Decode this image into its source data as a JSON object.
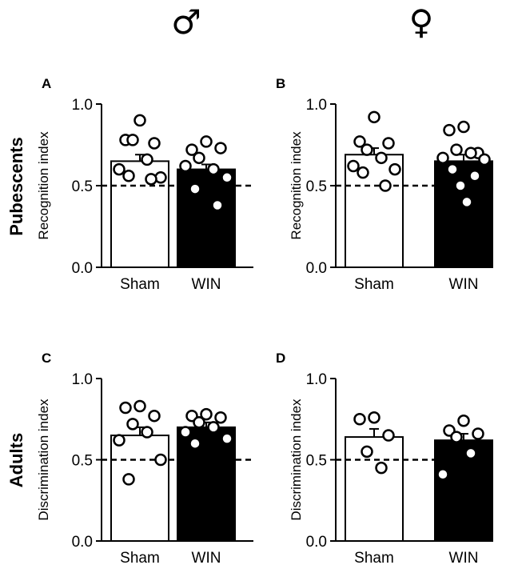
{
  "symbols": {
    "male": "♂",
    "female": "♀"
  },
  "row_labels": {
    "top": "Pubescents",
    "bottom": "Adults"
  },
  "chart_data": [
    {
      "panel": "A",
      "type": "bar",
      "ylabel": "Recognition index",
      "categories": [
        "Sham",
        "WIN"
      ],
      "means": [
        0.65,
        0.6
      ],
      "sem": [
        0.04,
        0.03
      ],
      "bar_fill": [
        "#ffffff",
        "#000000"
      ],
      "points": [
        [
          0.9,
          0.78,
          0.76,
          0.78,
          0.66,
          0.6,
          0.55,
          0.56,
          0.54
        ],
        [
          0.77,
          0.72,
          0.73,
          0.67,
          0.6,
          0.62,
          0.55,
          0.48,
          0.38
        ]
      ],
      "reference_line": 0.5,
      "ylim": [
        0.0,
        1.0
      ],
      "yticks": [
        "0.0",
        "0.5",
        "1.0"
      ]
    },
    {
      "panel": "B",
      "type": "bar",
      "ylabel": "Recognition index",
      "categories": [
        "Sham",
        "WIN"
      ],
      "means": [
        0.69,
        0.65
      ],
      "sem": [
        0.04,
        0.04
      ],
      "bar_fill": [
        "#ffffff",
        "#000000"
      ],
      "points": [
        [
          0.92,
          0.77,
          0.76,
          0.72,
          0.67,
          0.62,
          0.6,
          0.58,
          0.5
        ],
        [
          0.86,
          0.84,
          0.7,
          0.72,
          0.7,
          0.67,
          0.66,
          0.6,
          0.56,
          0.5,
          0.4
        ]
      ],
      "reference_line": 0.5,
      "ylim": [
        0.0,
        1.0
      ],
      "yticks": [
        "0.0",
        "0.5",
        "1.0"
      ]
    },
    {
      "panel": "C",
      "type": "bar",
      "ylabel": "Discrimination index",
      "categories": [
        "Sham",
        "WIN"
      ],
      "means": [
        0.65,
        0.7
      ],
      "sem": [
        0.05,
        0.03
      ],
      "bar_fill": [
        "#ffffff",
        "#000000"
      ],
      "points": [
        [
          0.83,
          0.82,
          0.77,
          0.72,
          0.67,
          0.62,
          0.5,
          0.38
        ],
        [
          0.78,
          0.77,
          0.76,
          0.73,
          0.7,
          0.67,
          0.63,
          0.6
        ]
      ],
      "reference_line": 0.5,
      "ylim": [
        0.0,
        1.0
      ],
      "yticks": [
        "0.0",
        "0.5",
        "1.0"
      ]
    },
    {
      "panel": "D",
      "type": "bar",
      "ylabel": "Discrimination index",
      "categories": [
        "Sham",
        "WIN"
      ],
      "means": [
        0.64,
        0.62
      ],
      "sem": [
        0.05,
        0.04
      ],
      "bar_fill": [
        "#ffffff",
        "#000000"
      ],
      "points": [
        [
          0.76,
          0.75,
          0.65,
          0.55,
          0.45
        ],
        [
          0.74,
          0.68,
          0.66,
          0.64,
          0.54,
          0.41
        ]
      ],
      "reference_line": 0.5,
      "ylim": [
        0.0,
        1.0
      ],
      "yticks": [
        "0.0",
        "0.5",
        "1.0"
      ]
    }
  ]
}
